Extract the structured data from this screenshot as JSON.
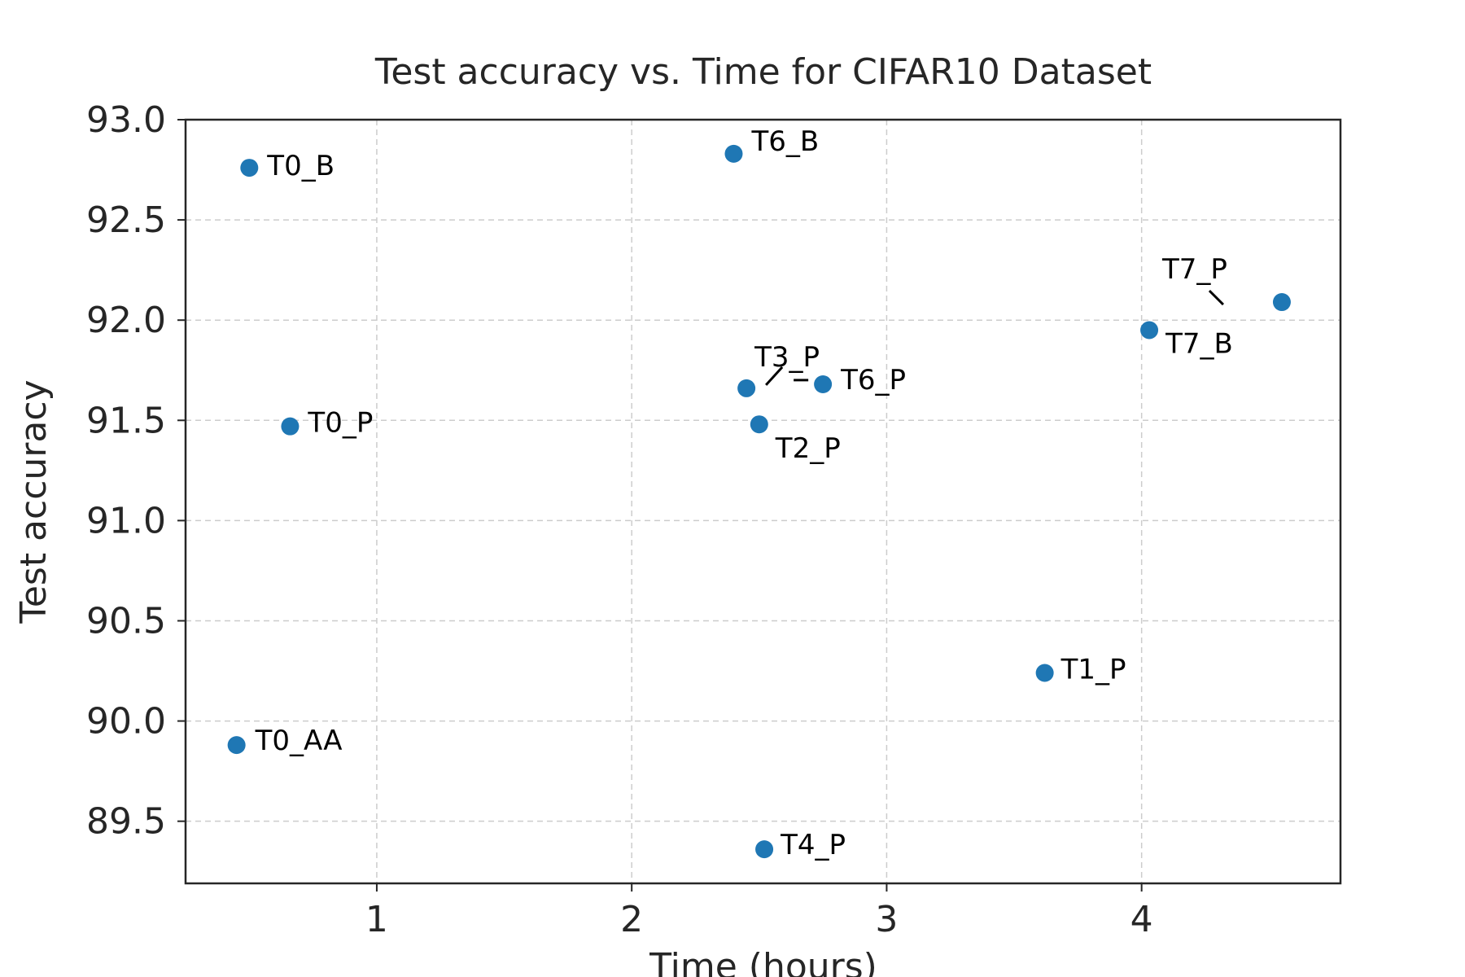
{
  "chart_data": {
    "type": "scatter",
    "title": "Test accuracy vs. Time for CIFAR10 Dataset",
    "xlabel": "Time (hours)",
    "ylabel": "Test accuracy",
    "xlim": [
      0.25,
      4.78
    ],
    "ylim": [
      89.19,
      93.0
    ],
    "xticks": [
      1,
      2,
      3,
      4
    ],
    "xtick_labels": [
      "1",
      "2",
      "3",
      "4"
    ],
    "yticks": [
      89.5,
      90.0,
      90.5,
      91.0,
      91.5,
      92.0,
      92.5,
      93.0
    ],
    "ytick_labels": [
      "89.5",
      "90.0",
      "90.5",
      "91.0",
      "91.5",
      "92.0",
      "92.5",
      "93.0"
    ],
    "grid": true,
    "point_color": "#1f77b4",
    "points": [
      {
        "label": "T0_B",
        "x": 0.5,
        "y": 92.76
      },
      {
        "label": "T6_B",
        "x": 2.4,
        "y": 92.83
      },
      {
        "label": "T7_P",
        "x": 4.55,
        "y": 92.09
      },
      {
        "label": "T7_B",
        "x": 4.03,
        "y": 91.95
      },
      {
        "label": "T3_P",
        "x": 2.45,
        "y": 91.66
      },
      {
        "label": "T6_P",
        "x": 2.75,
        "y": 91.68
      },
      {
        "label": "T0_P",
        "x": 0.66,
        "y": 91.47
      },
      {
        "label": "T2_P",
        "x": 2.5,
        "y": 91.48
      },
      {
        "label": "T1_P",
        "x": 3.62,
        "y": 90.24
      },
      {
        "label": "T0_AA",
        "x": 0.45,
        "y": 89.88
      },
      {
        "label": "T4_P",
        "x": 2.52,
        "y": 89.36
      }
    ]
  }
}
